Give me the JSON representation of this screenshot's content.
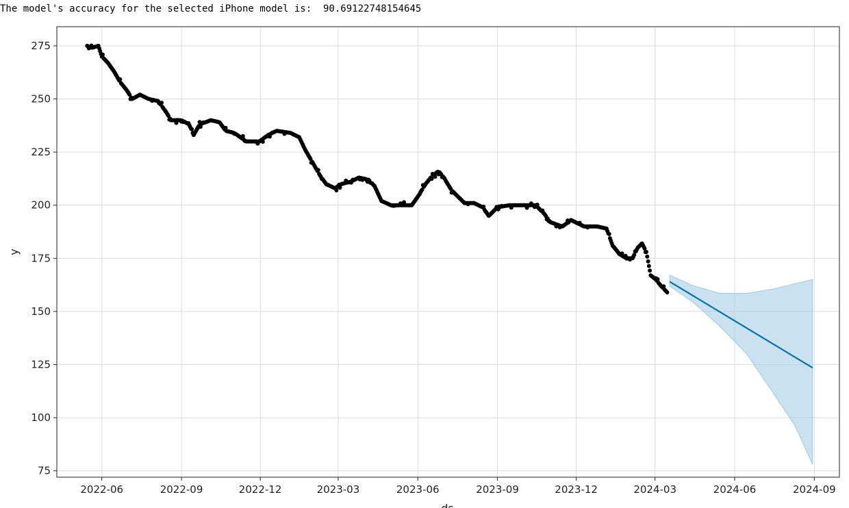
{
  "output": {
    "cut_line": "                                      ",
    "accuracy_line": "The model's accuracy for the selected iPhone model is:  90.69122748154645"
  },
  "chart_data": {
    "type": "scatter",
    "xlabel": "ds",
    "ylabel": "y",
    "x_ticks": [
      "2022-06",
      "2022-09",
      "2022-12",
      "2023-03",
      "2023-06",
      "2023-09",
      "2023-12",
      "2024-03",
      "2024-06",
      "2024-09"
    ],
    "y_ticks": [
      75,
      100,
      125,
      150,
      175,
      200,
      225,
      250,
      275
    ],
    "xlim": [
      "2022-04-10",
      "2024-09-30"
    ],
    "ylim": [
      72,
      284
    ],
    "grid": true,
    "colors": {
      "actual": "#000000",
      "forecast": "#0072B2",
      "interval": "#9ecae1"
    },
    "actual_key_points": [
      [
        "2022-05-15",
        275
      ],
      [
        "2022-05-20",
        274
      ],
      [
        "2022-05-28",
        275
      ],
      [
        "2022-06-01",
        270
      ],
      [
        "2022-06-08",
        267
      ],
      [
        "2022-06-15",
        263
      ],
      [
        "2022-06-22",
        258
      ],
      [
        "2022-06-30",
        254
      ],
      [
        "2022-07-06",
        250
      ],
      [
        "2022-07-15",
        252
      ],
      [
        "2022-07-25",
        250
      ],
      [
        "2022-08-05",
        249
      ],
      [
        "2022-08-14",
        244
      ],
      [
        "2022-08-20",
        240
      ],
      [
        "2022-09-01",
        240
      ],
      [
        "2022-09-10",
        238
      ],
      [
        "2022-09-15",
        233
      ],
      [
        "2022-09-22",
        238
      ],
      [
        "2022-10-05",
        240
      ],
      [
        "2022-10-15",
        239
      ],
      [
        "2022-10-22",
        235
      ],
      [
        "2022-11-01",
        234
      ],
      [
        "2022-11-08",
        232
      ],
      [
        "2022-11-15",
        230
      ],
      [
        "2022-11-30",
        230
      ],
      [
        "2022-12-10",
        233
      ],
      [
        "2022-12-20",
        235
      ],
      [
        "2023-01-05",
        234
      ],
      [
        "2023-01-15",
        232
      ],
      [
        "2023-01-22",
        226
      ],
      [
        "2023-02-01",
        219
      ],
      [
        "2023-02-08",
        214
      ],
      [
        "2023-02-15",
        210
      ],
      [
        "2023-02-25",
        208
      ],
      [
        "2023-03-05",
        210
      ],
      [
        "2023-03-15",
        211
      ],
      [
        "2023-03-25",
        213
      ],
      [
        "2023-04-05",
        212
      ],
      [
        "2023-04-12",
        209
      ],
      [
        "2023-04-20",
        202
      ],
      [
        "2023-05-01",
        200
      ],
      [
        "2023-05-25",
        200
      ],
      [
        "2023-06-01",
        204
      ],
      [
        "2023-06-10",
        210
      ],
      [
        "2023-06-18",
        214
      ],
      [
        "2023-06-25",
        216
      ],
      [
        "2023-07-01",
        213
      ],
      [
        "2023-07-10",
        207
      ],
      [
        "2023-07-25",
        201
      ],
      [
        "2023-08-05",
        201
      ],
      [
        "2023-08-15",
        199
      ],
      [
        "2023-08-22",
        195
      ],
      [
        "2023-09-01",
        199
      ],
      [
        "2023-09-15",
        200
      ],
      [
        "2023-10-01",
        200
      ],
      [
        "2023-10-15",
        200
      ],
      [
        "2023-10-25",
        196
      ],
      [
        "2023-11-01",
        192
      ],
      [
        "2023-11-15",
        190
      ],
      [
        "2023-11-25",
        193
      ],
      [
        "2023-12-10",
        190
      ],
      [
        "2023-12-25",
        190
      ],
      [
        "2024-01-05",
        189
      ],
      [
        "2024-01-12",
        181
      ],
      [
        "2024-01-20",
        177
      ],
      [
        "2024-01-28",
        175
      ],
      [
        "2024-02-04",
        175
      ],
      [
        "2024-02-10",
        180
      ],
      [
        "2024-02-15",
        182
      ],
      [
        "2024-02-20",
        178
      ],
      [
        "2024-02-25",
        167
      ],
      [
        "2024-03-02",
        165
      ],
      [
        "2024-03-08",
        162
      ],
      [
        "2024-03-15",
        159
      ]
    ],
    "forecast": {
      "start": "2024-03-18",
      "end": "2024-08-30",
      "yhat_start": 164,
      "yhat_end": 123.5,
      "upper": [
        [
          "2024-03-18",
          167
        ],
        [
          "2024-04-15",
          162
        ],
        [
          "2024-05-15",
          158.5
        ],
        [
          "2024-06-15",
          158.5
        ],
        [
          "2024-07-15",
          160.5
        ],
        [
          "2024-08-30",
          165
        ]
      ],
      "lower": [
        [
          "2024-03-18",
          162
        ],
        [
          "2024-04-15",
          154
        ],
        [
          "2024-05-15",
          143
        ],
        [
          "2024-06-15",
          130
        ],
        [
          "2024-07-15",
          112
        ],
        [
          "2024-08-10",
          96
        ],
        [
          "2024-08-30",
          78
        ]
      ]
    }
  }
}
